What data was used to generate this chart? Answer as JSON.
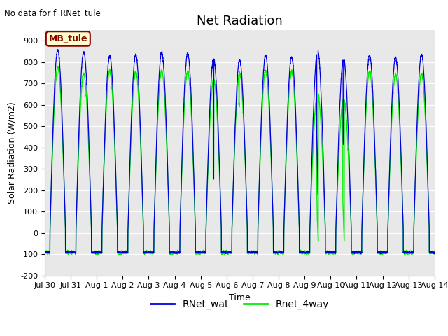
{
  "title": "Net Radiation",
  "xlabel": "Time",
  "ylabel": "Solar Radiation (W/m2)",
  "no_data_text": "No data for f_RNet_tule",
  "legend_label_box": "MB_tule",
  "series1_label": "RNet_wat",
  "series2_label": "Rnet_4way",
  "series1_color": "#0000dd",
  "series2_color": "#00ee00",
  "ylim": [
    -200,
    950
  ],
  "yticks": [
    -200,
    -100,
    0,
    100,
    200,
    300,
    400,
    500,
    600,
    700,
    800,
    900
  ],
  "fig_bg_color": "#ffffff",
  "plot_bg_color": "#e8e8e8",
  "num_days": 15,
  "x_tick_labels": [
    "Jul 30",
    "Jul 31",
    "Aug 1",
    "Aug 2",
    "Aug 3",
    "Aug 4",
    "Aug 5",
    "Aug 6",
    "Aug 7",
    "Aug 8",
    "Aug 9",
    "Aug 10",
    "Aug 11",
    "Aug 12",
    "Aug 13",
    "Aug 14"
  ],
  "title_fontsize": 13,
  "label_fontsize": 9,
  "tick_fontsize": 8,
  "legend_fontsize": 10
}
